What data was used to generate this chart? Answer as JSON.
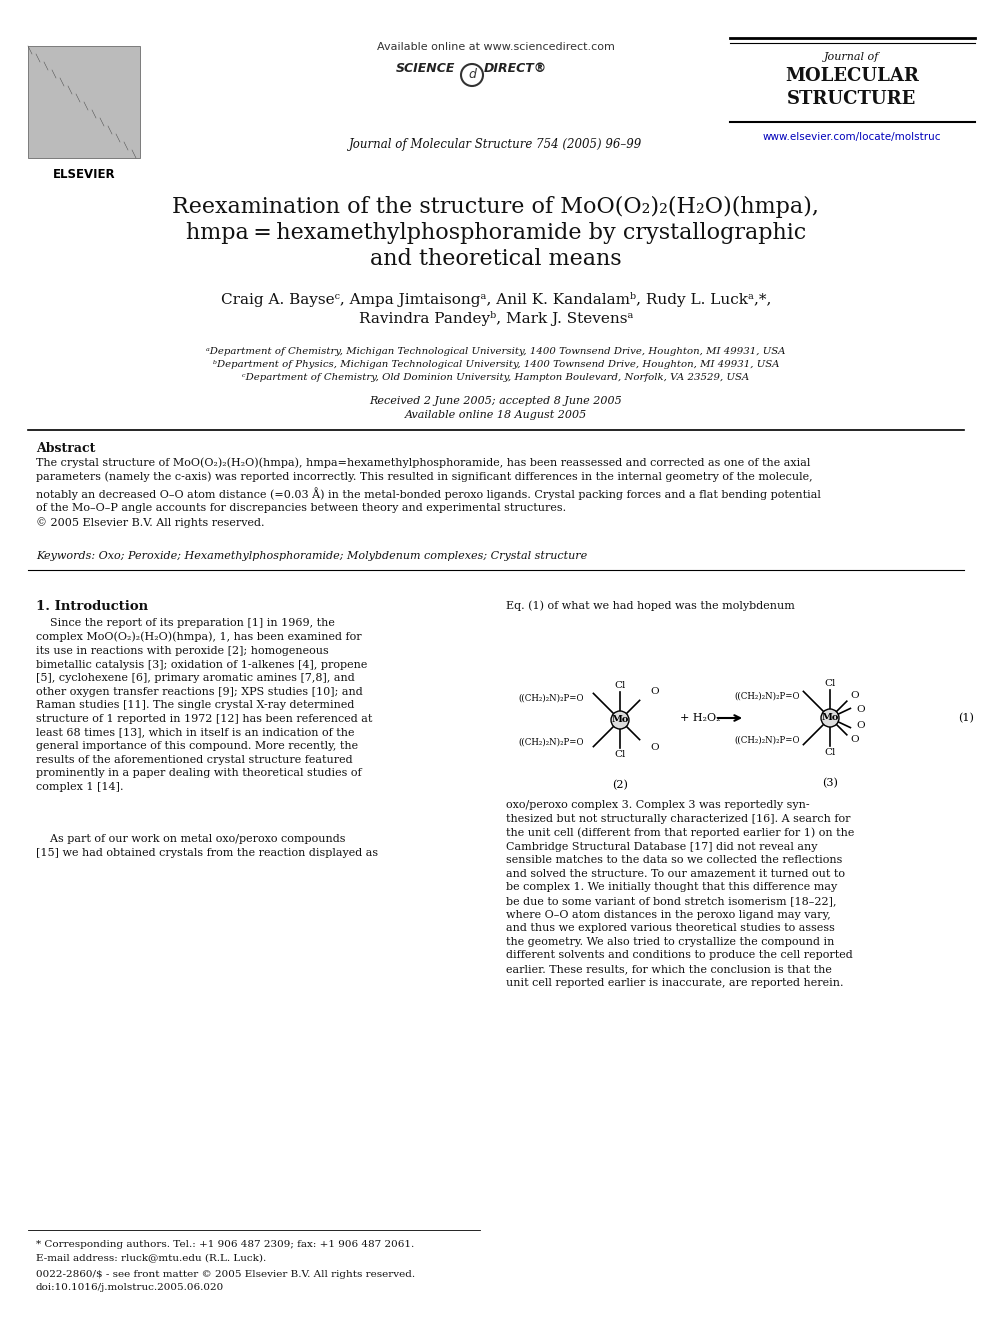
{
  "title_line1": "Reexamination of the structure of MoO(O₂)₂(H₂O)(hmpa),",
  "title_line2": "hmpa = hexamethylphosphoramide by crystallographic",
  "title_line3": "and theoretical means",
  "authors": "Craig A. Bayseᶜ, Ampa Jimtaisongᵃ, Anil K. Kandalamᵇ, Rudy L. Luckᵃ,*,",
  "authors2": "Ravindra Pandeyᵇ, Mark J. Stevensᵃ",
  "affil_a": "ᵃDepartment of Chemistry, Michigan Technological University, 1400 Townsend Drive, Houghton, MI 49931, USA",
  "affil_b": "ᵇDepartment of Physics, Michigan Technological University, 1400 Townsend Drive, Houghton, MI 49931, USA",
  "affil_c": "ᶜDepartment of Chemistry, Old Dominion University, Hampton Boulevard, Norfolk, VA 23529, USA",
  "received": "Received 2 June 2005; accepted 8 June 2005",
  "available": "Available online 18 August 2005",
  "abstract_title": "Abstract",
  "keywords": "Keywords: Oxo; Peroxide; Hexamethylphosphoramide; Molybdenum complexes; Crystal structure",
  "section1_title": "1. Introduction",
  "footnote1": "* Corresponding authors. Tel.: +1 906 487 2309; fax: +1 906 487 2061.",
  "footnote2": "E-mail address: rluck@mtu.edu (R.L. Luck).",
  "footnote3": "0022-2860/$ - see front matter © 2005 Elsevier B.V. All rights reserved.",
  "footnote4": "doi:10.1016/j.molstruc.2005.06.020",
  "journal_header": "Journal of Molecular Structure 754 (2005) 96–99",
  "available_online": "Available online at www.sciencedirect.com",
  "journal_name_line1": "Journal of",
  "journal_name_line2": "MOLECULAR",
  "journal_name_line3": "STRUCTURE",
  "journal_url": "www.elsevier.com/locate/molstruc",
  "bg_color": "#ffffff",
  "text_color": "#000000",
  "link_color": "#0000bb"
}
